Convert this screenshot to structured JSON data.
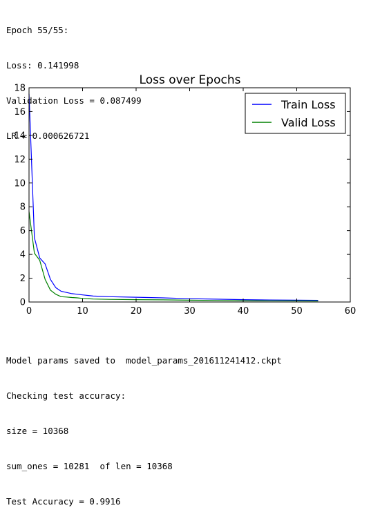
{
  "log_top": [
    "Epoch 55/55:",
    "Loss: 0.141998",
    "Validation Loss = 0.087499",
    "LR = 0.000626721"
  ],
  "log_bottom": [
    "Model params saved to  model_params_201611241412.ckpt",
    "Checking test accuracy:",
    "size = 10368",
    "sum_ones = 10281  of len = 10368",
    "Test Accuracy = 0.9916"
  ],
  "chart_data": {
    "type": "line",
    "title": "Loss over Epochs",
    "xlabel": "",
    "ylabel": "",
    "xlim": [
      0,
      60
    ],
    "ylim": [
      0,
      18
    ],
    "xticks": [
      0,
      10,
      20,
      30,
      40,
      50,
      60
    ],
    "yticks": [
      0,
      2,
      4,
      6,
      8,
      10,
      12,
      14,
      16,
      18
    ],
    "grid": false,
    "legend_position": "top-right",
    "series": [
      {
        "name": "Train Loss",
        "color": "#0000ff",
        "x": [
          0,
          1,
          2,
          3,
          4,
          5,
          6,
          7,
          8,
          9,
          10,
          12,
          15,
          20,
          25,
          30,
          35,
          40,
          45,
          50,
          54
        ],
        "y": [
          17.5,
          5.4,
          3.7,
          3.2,
          1.9,
          1.2,
          0.9,
          0.8,
          0.7,
          0.65,
          0.6,
          0.5,
          0.45,
          0.4,
          0.35,
          0.28,
          0.24,
          0.2,
          0.17,
          0.15,
          0.142
        ]
      },
      {
        "name": "Valid Loss",
        "color": "#008000",
        "x": [
          0,
          1,
          2,
          3,
          4,
          5,
          6,
          7,
          8,
          9,
          10,
          12,
          15,
          20,
          25,
          30,
          35,
          40,
          45,
          50,
          54
        ],
        "y": [
          7.6,
          4.1,
          3.5,
          1.9,
          1.0,
          0.65,
          0.45,
          0.42,
          0.38,
          0.35,
          0.3,
          0.25,
          0.22,
          0.2,
          0.18,
          0.15,
          0.13,
          0.11,
          0.1,
          0.09,
          0.0875
        ]
      }
    ]
  }
}
